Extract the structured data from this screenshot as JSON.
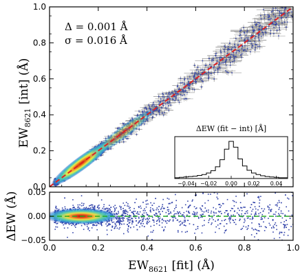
{
  "chart_data": [
    {
      "type": "scatter",
      "panel": "main",
      "ylabel": "EW",
      "ylabel_sub": "8621",
      "ylabel_suffix": " [int] (Å)",
      "xlim": [
        0,
        1
      ],
      "ylim": [
        0,
        1
      ],
      "xticks": [
        0.0,
        0.2,
        0.4,
        0.6,
        0.8,
        1.0
      ],
      "yticks": [
        0.0,
        0.2,
        0.4,
        0.6,
        0.8,
        1.0
      ],
      "ytick_labels": [
        "0.0",
        "0.2",
        "0.4",
        "0.6",
        "0.8",
        "1.0"
      ],
      "annotation_delta": "Δ = 0.001 Å",
      "annotation_sigma": "σ = 0.016 Å",
      "one_to_one_line": {
        "x": [
          0,
          1
        ],
        "y": [
          0,
          1
        ],
        "color": "#dd2222",
        "style": "dashed"
      },
      "point_color": "#3344aa",
      "errorbar_color": "#808080",
      "density_colormap": [
        "#2233aa",
        "#3399dd",
        "#55ccaa",
        "#eeee44",
        "#ee8822",
        "#cc2200"
      ]
    },
    {
      "type": "scatter",
      "panel": "residual",
      "xlabel": "EW",
      "xlabel_sub": "8621",
      "xlabel_suffix": " [fit] (Å)",
      "ylabel": "ΔEW (Å)",
      "xlim": [
        0,
        1
      ],
      "ylim": [
        -0.05,
        0.05
      ],
      "xticks": [
        0.0,
        0.2,
        0.4,
        0.6,
        0.8,
        1.0
      ],
      "xtick_labels": [
        "0.0",
        "0.2",
        "0.4",
        "0.6",
        "0.8",
        "1.0"
      ],
      "yticks": [
        -0.05,
        0.0,
        0.05
      ],
      "ytick_labels": [
        "−0.05",
        "0.00",
        "0.05"
      ],
      "zero_line": {
        "y": 0,
        "color": "#22aa22",
        "style": "dashed"
      }
    },
    {
      "type": "histogram",
      "panel": "inset",
      "title": "ΔEW (fit − int) [Å]",
      "xlim": [
        -0.05,
        0.05
      ],
      "xticks": [
        -0.04,
        -0.02,
        0.0,
        0.02,
        0.04
      ],
      "xtick_labels": [
        "−0.04",
        "−0.02",
        "0.00",
        "0.02",
        "0.04"
      ],
      "bin_centers": [
        -0.048,
        -0.044,
        -0.04,
        -0.036,
        -0.032,
        -0.028,
        -0.024,
        -0.02,
        -0.016,
        -0.012,
        -0.008,
        -0.004,
        0.0,
        0.004,
        0.008,
        0.012,
        0.016,
        0.02,
        0.024,
        0.028,
        0.032,
        0.036,
        0.04,
        0.044,
        0.048
      ],
      "relative_counts": [
        0.02,
        0.03,
        0.04,
        0.05,
        0.06,
        0.08,
        0.1,
        0.14,
        0.2,
        0.3,
        0.48,
        0.75,
        0.95,
        0.8,
        0.5,
        0.32,
        0.21,
        0.14,
        0.1,
        0.07,
        0.05,
        0.04,
        0.03,
        0.02,
        0.02
      ]
    }
  ]
}
